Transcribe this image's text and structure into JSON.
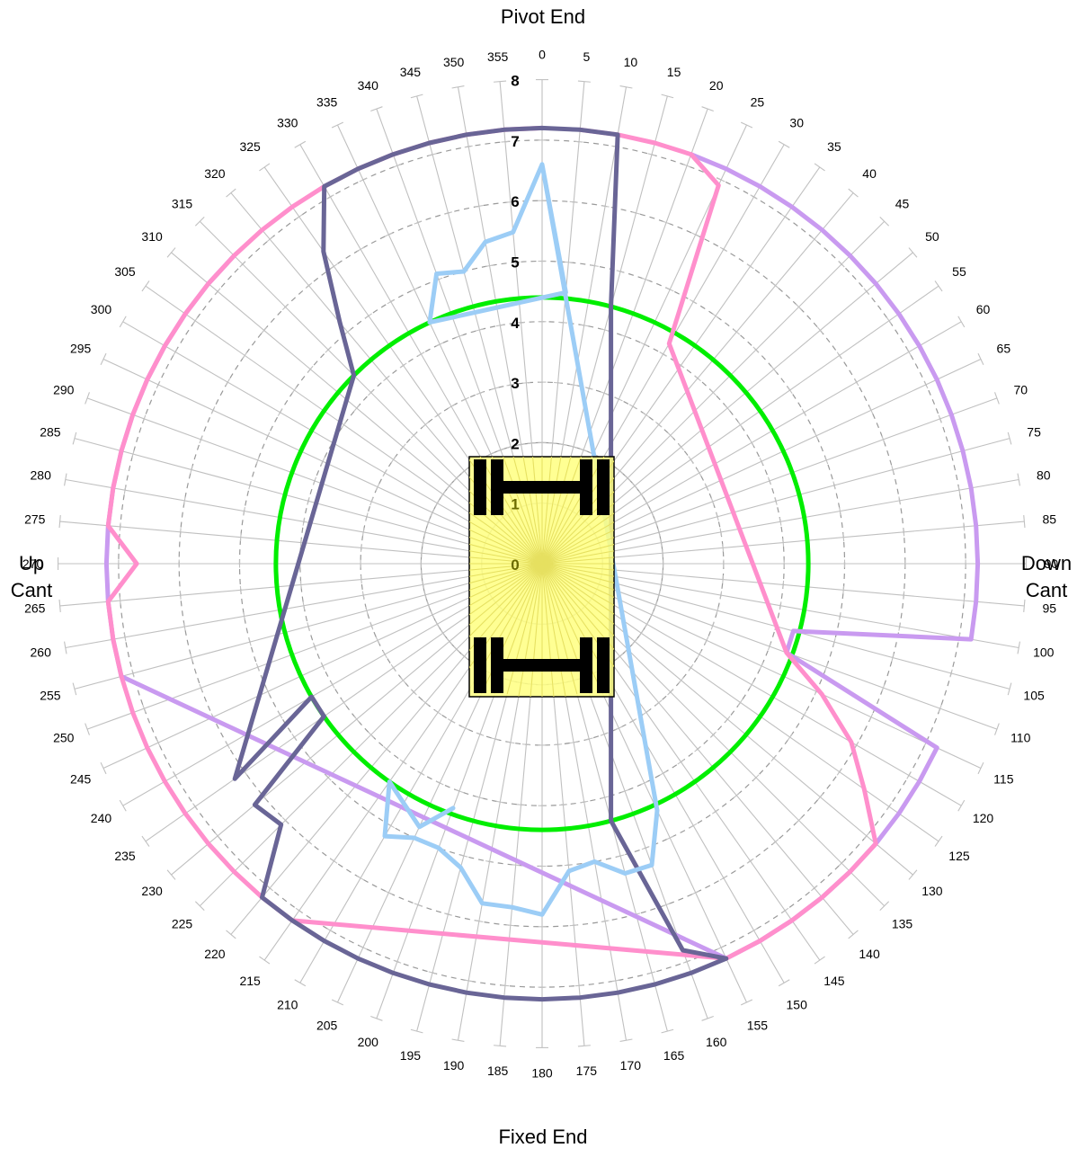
{
  "labels": {
    "top": "Pivot End",
    "bottom": "Fixed End",
    "left_line1": "Up",
    "left_line2": "Cant",
    "right_line1": "Down",
    "right_line2": "Cant"
  },
  "chart_data": {
    "type": "radar",
    "angle_unit": "degrees",
    "angle_step": 5,
    "angle_ticks": [
      "0",
      "5",
      "10",
      "15",
      "20",
      "25",
      "30",
      "35",
      "40",
      "45",
      "50",
      "55",
      "60",
      "65",
      "70",
      "75",
      "80",
      "85",
      "90",
      "95",
      "100",
      "105",
      "110",
      "115",
      "120",
      "125",
      "130",
      "135",
      "140",
      "145",
      "150",
      "155",
      "160",
      "165",
      "170",
      "175",
      "180",
      "185",
      "190",
      "195",
      "200",
      "205",
      "210",
      "215",
      "220",
      "225",
      "230",
      "235",
      "240",
      "245",
      "250",
      "255",
      "260",
      "265",
      "270",
      "275",
      "280",
      "285",
      "290",
      "295",
      "300",
      "305",
      "310",
      "315",
      "320",
      "325",
      "330",
      "335",
      "340",
      "345",
      "350",
      "355"
    ],
    "radial_ticks": [
      "0",
      "1",
      "2",
      "3",
      "4",
      "5",
      "6",
      "7",
      "8"
    ],
    "rlim": [
      0,
      8
    ],
    "grid": true,
    "colors": {
      "purple": "#c99af0",
      "pink": "#ff8fcc",
      "navy": "#696596",
      "lightblue": "#9ccdf6",
      "green": "#00ee00",
      "grid": "#c0c0c0",
      "machine": "#ffff80"
    },
    "reference_circle": {
      "radius": 4.4
    },
    "series": [
      {
        "color": "purple",
        "points": [
          [
            20,
            7.2
          ],
          [
            25,
            7.2
          ],
          [
            30,
            7.2
          ],
          [
            35,
            7.2
          ],
          [
            40,
            7.2
          ],
          [
            45,
            7.2
          ],
          [
            50,
            7.2
          ],
          [
            55,
            7.2
          ],
          [
            60,
            7.2
          ],
          [
            65,
            7.2
          ],
          [
            70,
            7.2
          ],
          [
            75,
            7.2
          ],
          [
            80,
            7.2
          ],
          [
            85,
            7.2
          ],
          [
            90,
            7.2
          ],
          [
            95,
            7.2
          ],
          [
            100,
            7.2
          ],
          [
            105,
            4.3
          ],
          [
            110,
            4.3
          ],
          [
            115,
            7.2
          ],
          [
            120,
            7.2
          ],
          [
            125,
            7.2
          ],
          [
            130,
            7.2
          ],
          [
            135,
            7.2
          ],
          [
            140,
            7.2
          ],
          [
            145,
            7.2
          ],
          [
            150,
            7.2
          ],
          [
            155,
            7.2
          ],
          [
            255,
            7.2
          ],
          [
            260,
            7.2
          ],
          [
            265,
            7.2
          ],
          [
            270,
            7.2
          ],
          [
            275,
            7.2
          ],
          [
            280,
            7.2
          ],
          [
            285,
            7.2
          ],
          [
            290,
            7.2
          ],
          [
            295,
            7.2
          ],
          [
            300,
            7.2
          ],
          [
            305,
            7.2
          ],
          [
            310,
            7.2
          ],
          [
            315,
            7.2
          ]
        ]
      },
      {
        "color": "pink",
        "points": [
          [
            5,
            7.2
          ],
          [
            10,
            7.2
          ],
          [
            15,
            7.2
          ],
          [
            20,
            7.2
          ],
          [
            25,
            6.9
          ],
          [
            30,
            4.2
          ],
          [
            110,
            4.3
          ],
          [
            115,
            5.1
          ],
          [
            120,
            5.9
          ],
          [
            125,
            6.5
          ],
          [
            130,
            7.2
          ],
          [
            135,
            7.2
          ],
          [
            140,
            7.2
          ],
          [
            145,
            7.2
          ],
          [
            150,
            7.2
          ],
          [
            155,
            7.2
          ],
          [
            215,
            7.2
          ],
          [
            220,
            7.2
          ],
          [
            225,
            7.2
          ],
          [
            230,
            7.2
          ],
          [
            235,
            7.2
          ],
          [
            240,
            7.2
          ],
          [
            245,
            7.2
          ],
          [
            250,
            7.2
          ],
          [
            255,
            7.2
          ],
          [
            260,
            7.2
          ],
          [
            265,
            7.2
          ],
          [
            270,
            6.7
          ],
          [
            275,
            7.2
          ],
          [
            280,
            7.2
          ],
          [
            285,
            7.2
          ],
          [
            290,
            7.2
          ],
          [
            295,
            7.2
          ],
          [
            300,
            7.2
          ],
          [
            305,
            7.2
          ],
          [
            310,
            7.2
          ],
          [
            315,
            7.2
          ],
          [
            320,
            7.2
          ],
          [
            325,
            7.2
          ],
          [
            330,
            7.2
          ],
          [
            335,
            7.2
          ],
          [
            340,
            7.2
          ],
          [
            345,
            7.2
          ],
          [
            350,
            7.2
          ],
          [
            355,
            7.2
          ],
          [
            0,
            7.2
          ]
        ]
      },
      {
        "color": "navy",
        "points": [
          [
            0,
            7.2
          ],
          [
            5,
            7.2
          ],
          [
            10,
            7.2
          ],
          [
            15,
            4.4
          ],
          [
            165,
            4.4
          ],
          [
            160,
            6.8
          ],
          [
            155,
            7.2
          ],
          [
            160,
            7.2
          ],
          [
            165,
            7.2
          ],
          [
            170,
            7.2
          ],
          [
            175,
            7.2
          ],
          [
            180,
            7.2
          ],
          [
            185,
            7.2
          ],
          [
            190,
            7.2
          ],
          [
            195,
            7.2
          ],
          [
            200,
            7.2
          ],
          [
            205,
            7.2
          ],
          [
            210,
            7.2
          ],
          [
            215,
            7.2
          ],
          [
            220,
            7.2
          ],
          [
            225,
            6.1
          ],
          [
            230,
            6.2
          ],
          [
            235,
            4.4
          ],
          [
            240,
            4.4
          ],
          [
            235,
            6.2
          ],
          [
            315,
            4.4
          ],
          [
            320,
            5.2
          ],
          [
            325,
            6.3
          ],
          [
            330,
            7.2
          ],
          [
            335,
            7.2
          ],
          [
            340,
            7.2
          ],
          [
            345,
            7.2
          ],
          [
            350,
            7.2
          ],
          [
            355,
            7.2
          ],
          [
            0,
            7.2
          ]
        ]
      },
      {
        "color": "lightblue",
        "points": [
          [
            0,
            6.6
          ],
          [
            5,
            4.5
          ],
          [
            335,
            4.4
          ],
          [
            340,
            5.1
          ],
          [
            345,
            5.0
          ],
          [
            350,
            5.4
          ],
          [
            355,
            5.5
          ],
          [
            0,
            6.6
          ],
          [
            155,
            4.5
          ],
          [
            160,
            5.3
          ],
          [
            165,
            5.3
          ],
          [
            170,
            5.0
          ],
          [
            175,
            5.1
          ],
          [
            180,
            5.8
          ],
          [
            185,
            5.7
          ],
          [
            190,
            5.7
          ],
          [
            195,
            5.2
          ],
          [
            200,
            5.0
          ],
          [
            205,
            5.0
          ],
          [
            210,
            5.2
          ],
          [
            215,
            4.4
          ],
          [
            205,
            4.8
          ],
          [
            200,
            4.3
          ]
        ]
      }
    ]
  }
}
